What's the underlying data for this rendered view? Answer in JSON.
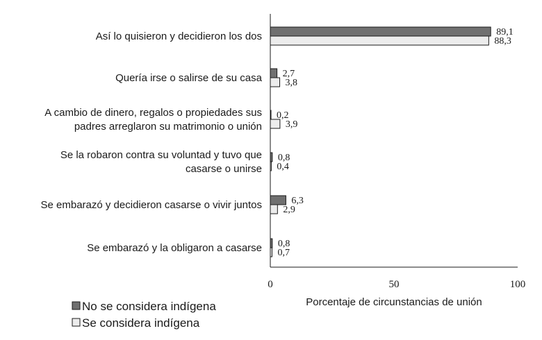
{
  "chart_data": {
    "type": "bar",
    "orientation": "horizontal",
    "categories": [
      [
        "Así lo quisieron y decidieron los dos"
      ],
      [
        "Quería irse o salirse de su casa"
      ],
      [
        "A cambio de dinero, regalos o propiedades sus",
        "padres arreglaron su matrimonio o unión"
      ],
      [
        "Se la robaron contra su voluntad y tuvo que",
        "casarse o unirse"
      ],
      [
        "Se embarazó y decidieron casarse o vivir juntos"
      ],
      [
        "Se embarazó y la obligaron a casarse"
      ]
    ],
    "series": [
      {
        "name": "No se considera indígena",
        "color": "#707070",
        "values": [
          89.1,
          2.7,
          0.2,
          0.8,
          6.3,
          0.8
        ],
        "labels": [
          "89,1",
          "2,7",
          "0,2",
          "0,8",
          "6,3",
          "0,8"
        ]
      },
      {
        "name": "Se considera indígena",
        "color": "#ececec",
        "values": [
          88.3,
          3.8,
          3.9,
          0.4,
          2.9,
          0.7
        ],
        "labels": [
          "88,3",
          "3,8",
          "3,9",
          "0,4",
          "2,9",
          "0,7"
        ]
      }
    ],
    "xlim": [
      0,
      100
    ],
    "xticks": [
      0,
      50,
      100
    ],
    "xtick_labels": [
      "0",
      "50",
      "100"
    ],
    "xlabel": "Porcentaje de circunstancias de unión",
    "ylabel": "",
    "title": "",
    "grid": false,
    "legend_position": "bottom-left"
  }
}
